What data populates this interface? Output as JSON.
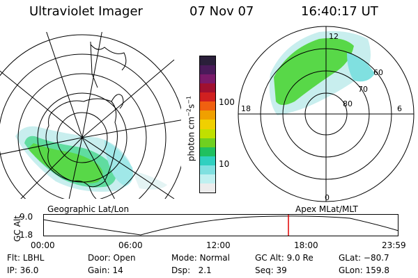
{
  "header": {
    "instrument": "Ultraviolet Imager",
    "date": "07 Nov 07",
    "time": "16:40:17 UT"
  },
  "colorbar": {
    "label_base": "photon cm",
    "label_exp1": "−2",
    "label_mid": "s",
    "label_exp2": "−1",
    "ticks": [
      "100",
      "10"
    ],
    "colors": [
      "#2a1f3a",
      "#4a1a5a",
      "#7a1a6a",
      "#a01030",
      "#d02020",
      "#f06010",
      "#f0a000",
      "#f0d000",
      "#c0e000",
      "#70d020",
      "#20c060",
      "#30d0c0",
      "#80e0e0",
      "#c0f0f0",
      "#ececec"
    ]
  },
  "polar_plot": {
    "lat_labels": [
      "60",
      "70",
      "80"
    ],
    "mlt_labels": [
      "12",
      "18",
      "6",
      "0"
    ]
  },
  "map_labels": {
    "left": "Geographic Lat/Lon",
    "right": "Apex MLat/MLT"
  },
  "altitude_panel": {
    "axis_label": "GC Alt",
    "y_ticks": [
      "9.0",
      "1.8"
    ],
    "x_ticks": [
      "00:00",
      "06:00",
      "12:00",
      "18:00",
      "23:59"
    ],
    "marker_color": "#e00000"
  },
  "info": {
    "flt_label": "Flt:",
    "flt_value": "LBHL",
    "ip_label": "IP:",
    "ip_value": "36.0",
    "door_label": "Door:",
    "door_value": "Open",
    "gain_label": "Gain:",
    "gain_value": "14",
    "mode_label": "Mode:",
    "mode_value": "Normal",
    "dsp_label": "Dsp:",
    "dsp_value": "2.1",
    "gcalt_label": "GC Alt:",
    "gcalt_value": "9.0 Re",
    "seq_label": "Seq:",
    "seq_value": "39",
    "glat_label": "GLat:",
    "glat_value": "−80.7",
    "glon_label": "GLon:",
    "glon_value": "159.8"
  }
}
